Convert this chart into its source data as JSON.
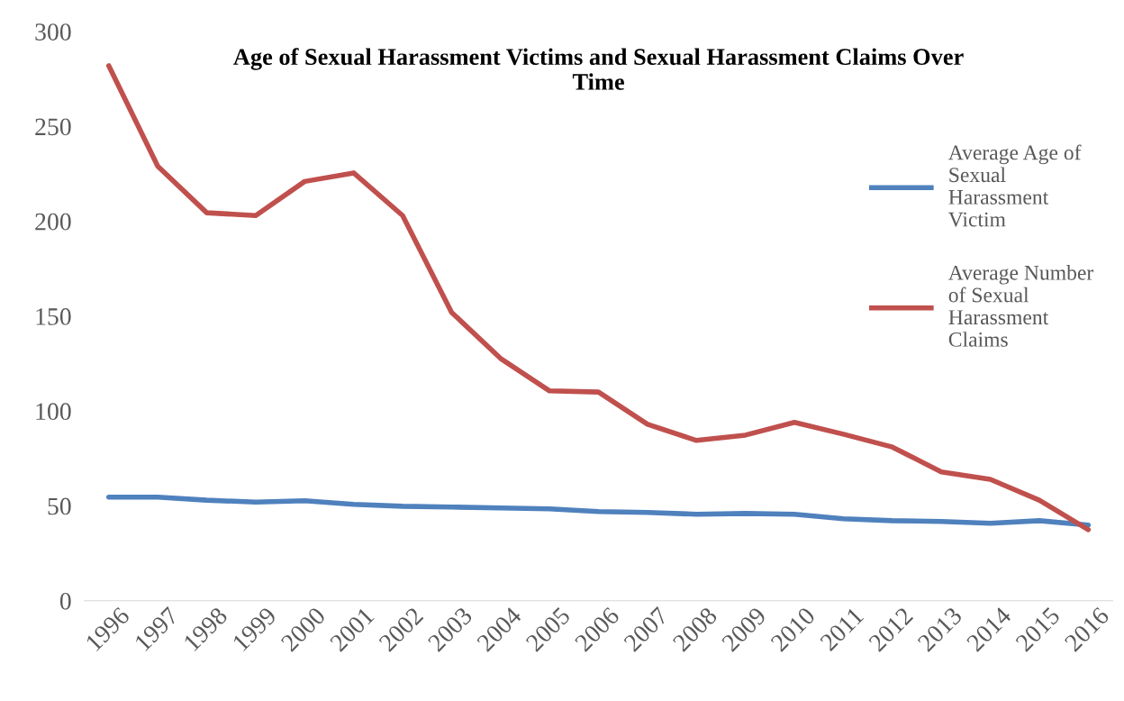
{
  "chart_data": {
    "type": "line",
    "title": "Age of Sexual Harassment Victims and Sexual Harassment Claims Over Time",
    "categories": [
      "1996",
      "1997",
      "1998",
      "1999",
      "2000",
      "2001",
      "2002",
      "2003",
      "2004",
      "2005",
      "2006",
      "2007",
      "2008",
      "2009",
      "2010",
      "2011",
      "2012",
      "2013",
      "2014",
      "2015",
      "2016"
    ],
    "series": [
      {
        "name": "Average Age of Sexual Harassment Victim",
        "color": "#4f81bd",
        "values": [
          54.6,
          54.6,
          53,
          52,
          52.7,
          50.8,
          49.8,
          49.4,
          48.9,
          48.4,
          47,
          46.5,
          45.6,
          46,
          45.6,
          43.2,
          42.2,
          41.8,
          40.8,
          42.2,
          39.9
        ]
      },
      {
        "name": "Average Number of Sexual Harassment Claims",
        "color": "#c0504d",
        "values": [
          282,
          229,
          204.5,
          203,
          221,
          225.5,
          203,
          152,
          127.7,
          110.6,
          110,
          93,
          84.5,
          87.3,
          94,
          87.8,
          81,
          67.9,
          64,
          53,
          37.5
        ]
      }
    ],
    "ylim": [
      0,
      300
    ],
    "yticks": [
      0,
      50,
      100,
      150,
      200,
      250,
      300
    ],
    "grid": false,
    "legend": "right",
    "marker": "none",
    "line_style": "solid"
  }
}
